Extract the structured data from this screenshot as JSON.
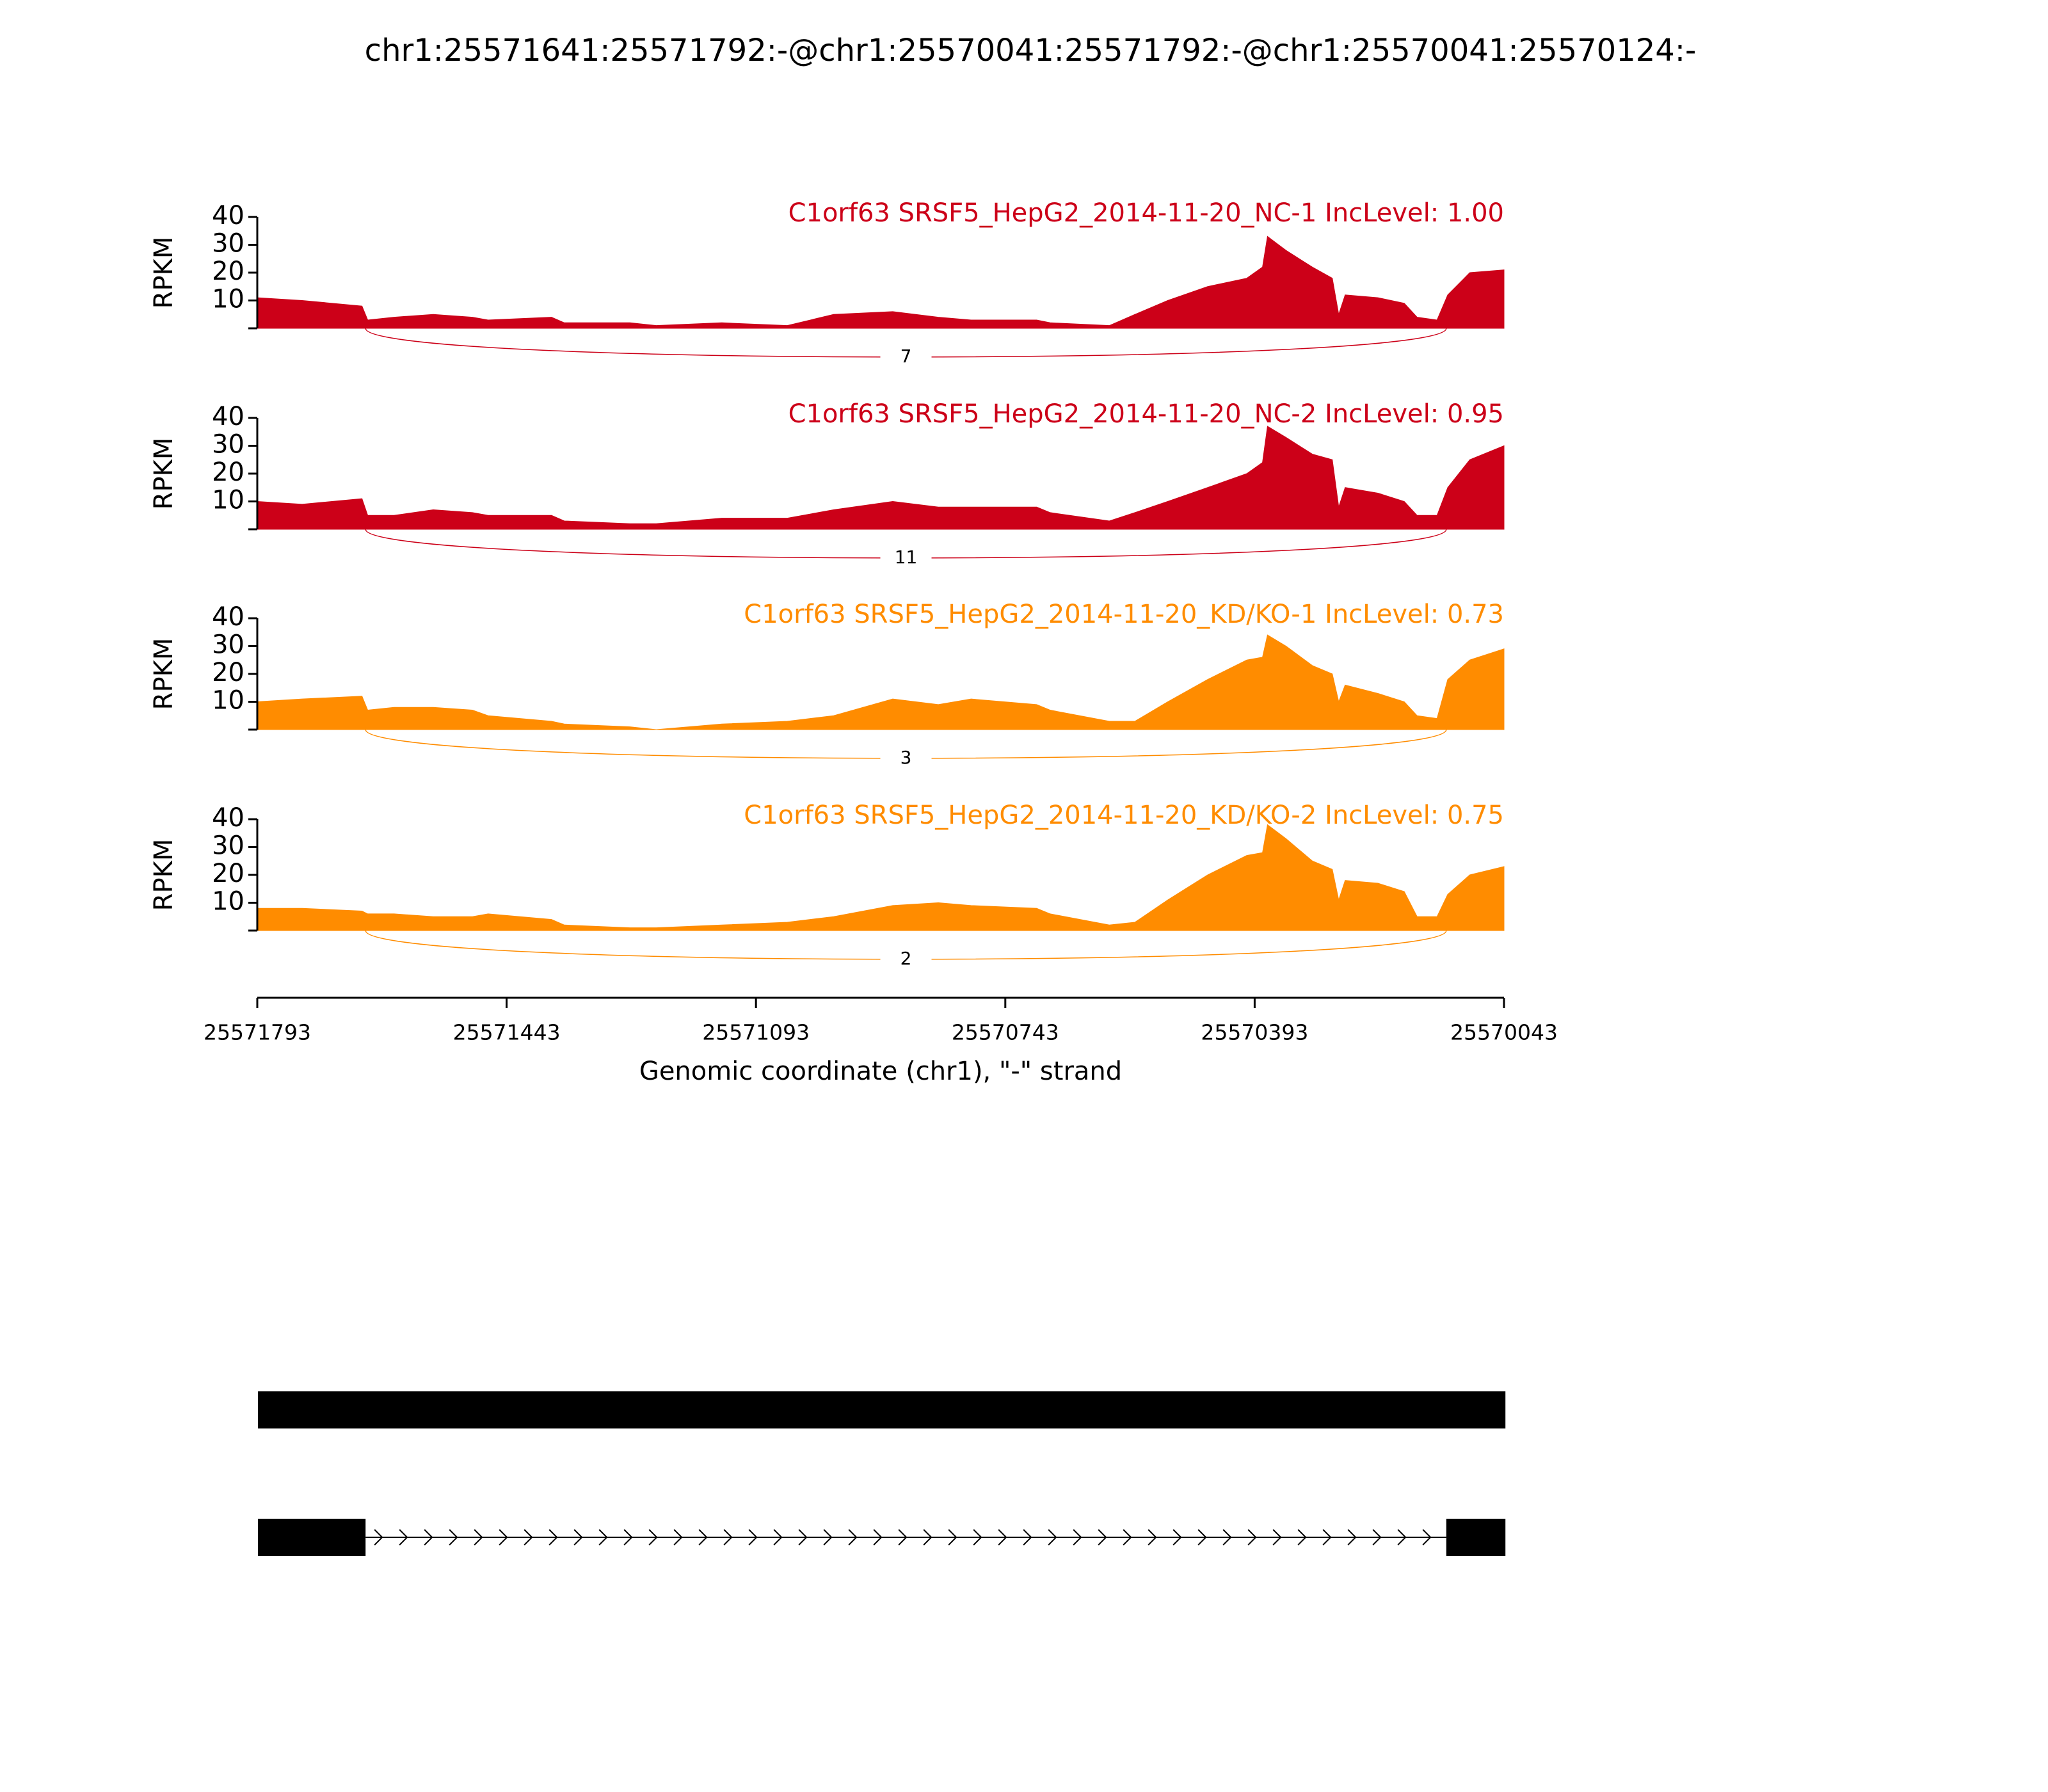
{
  "title": "chr1:25571641:25571792:-@chr1:25570041:25571792:-@chr1:25570041:25570124:-",
  "x_axis": {
    "label": "Genomic coordinate (chr1), \"-\" strand",
    "xlim": [
      25571793,
      25570043
    ],
    "xticks": [
      25571793,
      25571443,
      25571093,
      25570743,
      25570393,
      25570043
    ]
  },
  "chart_data": [
    {
      "type": "area",
      "title": "C1orf63 SRSF5_HepG2_2014-11-20_NC-1 IncLevel: 1.00",
      "ylabel": "RPKM",
      "color": "#cc0018",
      "ylim": [
        0,
        40
      ],
      "yticks": [
        10,
        20,
        30,
        40
      ],
      "x": [
        25571793,
        25571730,
        25571646,
        25571638,
        25571601,
        25571546,
        25571491,
        25571469,
        25571380,
        25571362,
        25571270,
        25571233,
        25571141,
        25571049,
        25570984,
        25570901,
        25570837,
        25570791,
        25570699,
        25570680,
        25570597,
        25570561,
        25570515,
        25570459,
        25570404,
        25570382,
        25570375,
        25570349,
        25570312,
        25570284,
        25570275,
        25570266,
        25570220,
        25570183,
        25570165,
        25570137,
        25570122,
        25570091,
        25570043
      ],
      "values": [
        11,
        10,
        8,
        3,
        4,
        5,
        4,
        3,
        4,
        2,
        2,
        1,
        2,
        1,
        5,
        6,
        4,
        3,
        3,
        2,
        1,
        5,
        10,
        15,
        18,
        22,
        33,
        28,
        22,
        18,
        5,
        12,
        11,
        9,
        4,
        3,
        12,
        20,
        21
      ],
      "junctions": [
        {
          "start": 25571641,
          "end": 25570124,
          "count": 7
        }
      ]
    },
    {
      "type": "area",
      "title": "C1orf63 SRSF5_HepG2_2014-11-20_NC-2 IncLevel: 0.95",
      "ylabel": "RPKM",
      "color": "#cc0018",
      "ylim": [
        0,
        40
      ],
      "yticks": [
        10,
        20,
        30,
        40
      ],
      "x": [
        25571793,
        25571730,
        25571646,
        25571638,
        25571601,
        25571546,
        25571491,
        25571469,
        25571380,
        25571362,
        25571270,
        25571233,
        25571141,
        25571049,
        25570984,
        25570901,
        25570837,
        25570791,
        25570699,
        25570680,
        25570597,
        25570561,
        25570515,
        25570459,
        25570404,
        25570382,
        25570375,
        25570349,
        25570312,
        25570284,
        25570275,
        25570266,
        25570220,
        25570183,
        25570165,
        25570137,
        25570122,
        25570091,
        25570043
      ],
      "values": [
        10,
        9,
        11,
        5,
        5,
        7,
        6,
        5,
        5,
        3,
        2,
        2,
        4,
        4,
        7,
        10,
        8,
        8,
        8,
        6,
        3,
        6,
        10,
        15,
        20,
        24,
        37,
        33,
        27,
        25,
        8,
        15,
        13,
        10,
        5,
        5,
        15,
        25,
        30
      ],
      "junctions": [
        {
          "start": 25571641,
          "end": 25570124,
          "count": 11
        }
      ]
    },
    {
      "type": "area",
      "title": "C1orf63 SRSF5_HepG2_2014-11-20_KD/KO-1 IncLevel: 0.73",
      "ylabel": "RPKM",
      "color": "#ff8c00",
      "ylim": [
        0,
        40
      ],
      "yticks": [
        10,
        20,
        30,
        40
      ],
      "x": [
        25571793,
        25571730,
        25571646,
        25571638,
        25571601,
        25571546,
        25571491,
        25571469,
        25571380,
        25571362,
        25571270,
        25571233,
        25571141,
        25571049,
        25570984,
        25570901,
        25570837,
        25570791,
        25570699,
        25570680,
        25570597,
        25570561,
        25570515,
        25570459,
        25570404,
        25570382,
        25570375,
        25570349,
        25570312,
        25570284,
        25570275,
        25570266,
        25570220,
        25570183,
        25570165,
        25570137,
        25570122,
        25570091,
        25570043
      ],
      "values": [
        10,
        11,
        12,
        7,
        8,
        8,
        7,
        5,
        3,
        2,
        1,
        0,
        2,
        3,
        5,
        11,
        9,
        11,
        9,
        7,
        3,
        3,
        10,
        18,
        25,
        26,
        34,
        30,
        23,
        20,
        10,
        16,
        13,
        10,
        5,
        4,
        18,
        25,
        29
      ],
      "junctions": [
        {
          "start": 25571641,
          "end": 25570124,
          "count": 3
        }
      ]
    },
    {
      "type": "area",
      "title": "C1orf63 SRSF5_HepG2_2014-11-20_KD/KO-2 IncLevel: 0.75",
      "ylabel": "RPKM",
      "color": "#ff8c00",
      "ylim": [
        0,
        40
      ],
      "yticks": [
        10,
        20,
        30,
        40
      ],
      "x": [
        25571793,
        25571730,
        25571646,
        25571638,
        25571601,
        25571546,
        25571491,
        25571469,
        25571380,
        25571362,
        25571270,
        25571233,
        25571141,
        25571049,
        25570984,
        25570901,
        25570837,
        25570791,
        25570699,
        25570680,
        25570597,
        25570561,
        25570515,
        25570459,
        25570404,
        25570382,
        25570375,
        25570349,
        25570312,
        25570284,
        25570275,
        25570266,
        25570220,
        25570183,
        25570165,
        25570137,
        25570122,
        25570091,
        25570043
      ],
      "values": [
        8,
        8,
        7,
        6,
        6,
        5,
        5,
        6,
        4,
        2,
        1,
        1,
        2,
        3,
        5,
        9,
        10,
        9,
        8,
        6,
        2,
        3,
        11,
        20,
        27,
        28,
        38,
        33,
        25,
        22,
        11,
        18,
        17,
        14,
        5,
        5,
        13,
        20,
        23
      ],
      "junctions": [
        {
          "start": 25571641,
          "end": 25570124,
          "count": 2
        }
      ]
    }
  ],
  "gene_model": {
    "color": "#000000",
    "transcripts": [
      {
        "exons": [
          [
            25570041,
            25571792
          ]
        ]
      },
      {
        "exons": [
          [
            25571641,
            25571792
          ],
          [
            25570041,
            25570124
          ]
        ]
      }
    ]
  }
}
